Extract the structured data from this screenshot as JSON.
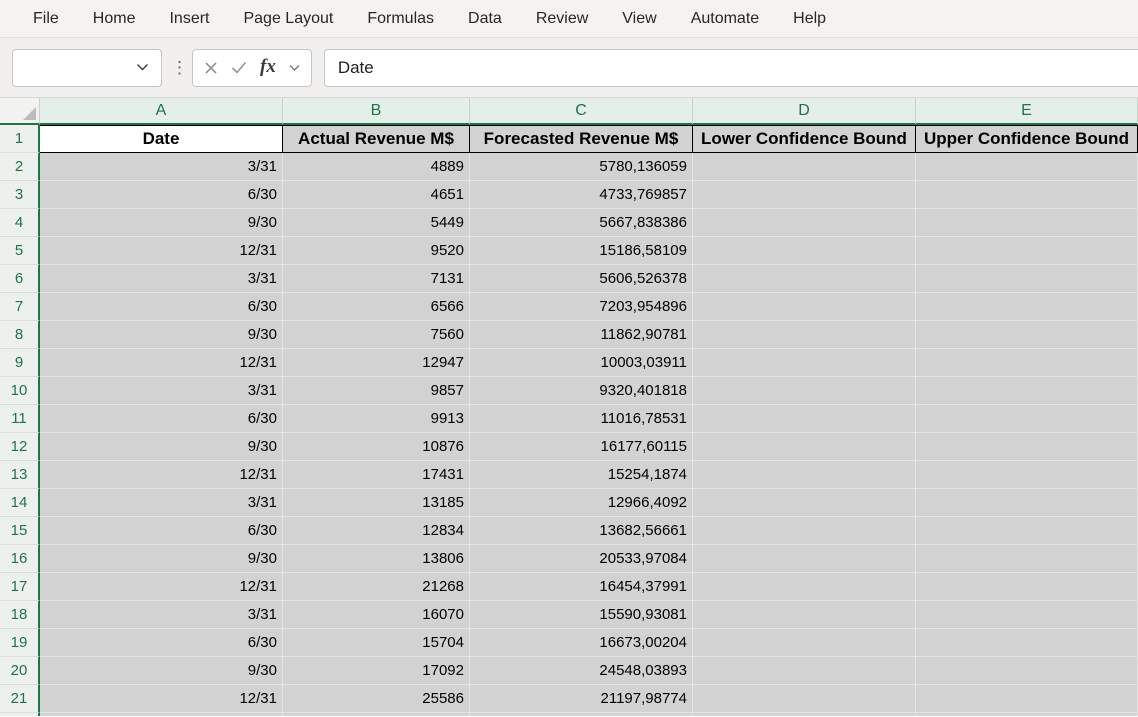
{
  "menubar": {
    "tabs": [
      "File",
      "Home",
      "Insert",
      "Page Layout",
      "Formulas",
      "Data",
      "Review",
      "View",
      "Automate",
      "Help"
    ]
  },
  "formula_bar": {
    "name_box_value": "",
    "formula_value": "Date",
    "icons": {
      "name_box_chevron": "chevron-down",
      "separator": "kebab-vertical",
      "cancel": "x-mark",
      "enter": "check-mark",
      "insert_function": "fx",
      "formula_chevron": "chevron-down"
    }
  },
  "grid": {
    "column_headers": [
      "A",
      "B",
      "C",
      "D",
      "E"
    ],
    "active_cell": "A1",
    "header_row": {
      "num": "1",
      "cells": [
        "Date",
        "Actual Revenue M$",
        "Forecasted Revenue M$",
        "Lower Confidence Bound",
        "Upper Confidence Bound"
      ]
    },
    "rows": [
      {
        "num": "2",
        "cells": [
          "3/31",
          "4889",
          "5780,136059",
          "",
          ""
        ]
      },
      {
        "num": "3",
        "cells": [
          "6/30",
          "4651",
          "4733,769857",
          "",
          ""
        ]
      },
      {
        "num": "4",
        "cells": [
          "9/30",
          "5449",
          "5667,838386",
          "",
          ""
        ]
      },
      {
        "num": "5",
        "cells": [
          "12/31",
          "9520",
          "15186,58109",
          "",
          ""
        ]
      },
      {
        "num": "6",
        "cells": [
          "3/31",
          "7131",
          "5606,526378",
          "",
          ""
        ]
      },
      {
        "num": "7",
        "cells": [
          "6/30",
          "6566",
          "7203,954896",
          "",
          ""
        ]
      },
      {
        "num": "8",
        "cells": [
          "9/30",
          "7560",
          "11862,90781",
          "",
          ""
        ]
      },
      {
        "num": "9",
        "cells": [
          "12/31",
          "12947",
          "10003,03911",
          "",
          ""
        ]
      },
      {
        "num": "10",
        "cells": [
          "3/31",
          "9857",
          "9320,401818",
          "",
          ""
        ]
      },
      {
        "num": "11",
        "cells": [
          "6/30",
          "9913",
          "11016,78531",
          "",
          ""
        ]
      },
      {
        "num": "12",
        "cells": [
          "9/30",
          "10876",
          "16177,60115",
          "",
          ""
        ]
      },
      {
        "num": "13",
        "cells": [
          "12/31",
          "17431",
          "15254,1874",
          "",
          ""
        ]
      },
      {
        "num": "14",
        "cells": [
          "3/31",
          "13185",
          "12966,4092",
          "",
          ""
        ]
      },
      {
        "num": "15",
        "cells": [
          "6/30",
          "12834",
          "13682,56661",
          "",
          ""
        ]
      },
      {
        "num": "16",
        "cells": [
          "9/30",
          "13806",
          "20533,97084",
          "",
          ""
        ]
      },
      {
        "num": "17",
        "cells": [
          "12/31",
          "21268",
          "16454,37991",
          "",
          ""
        ]
      },
      {
        "num": "18",
        "cells": [
          "3/31",
          "16070",
          "15590,93081",
          "",
          ""
        ]
      },
      {
        "num": "19",
        "cells": [
          "6/30",
          "15704",
          "16673,00204",
          "",
          ""
        ]
      },
      {
        "num": "20",
        "cells": [
          "9/30",
          "17092",
          "24548,03893",
          "",
          ""
        ]
      },
      {
        "num": "21",
        "cells": [
          "12/31",
          "25586",
          "21197,98774",
          "",
          ""
        ]
      }
    ]
  },
  "colors": {
    "accent_green": "#217346",
    "header_green_bg": "#e4efe9",
    "selection_fill": "#d2d2d2",
    "active_cell_bg": "#ffffff",
    "toolbar_bg": "#f1f0ef"
  }
}
